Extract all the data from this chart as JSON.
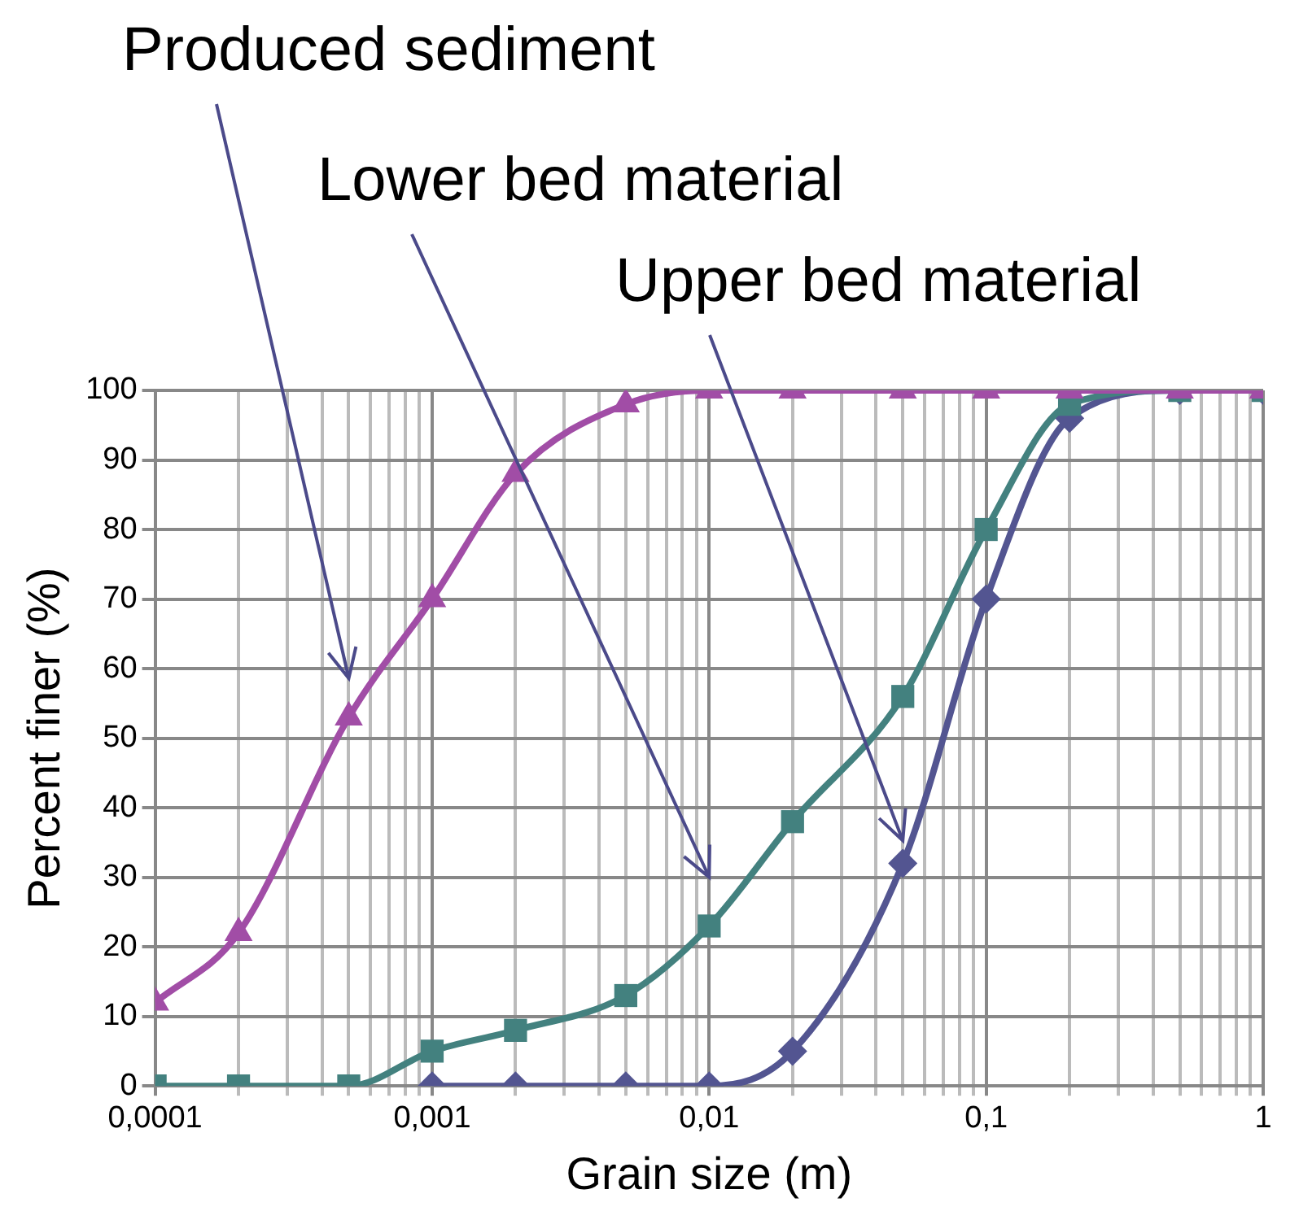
{
  "chart_data": {
    "type": "line",
    "xlabel": "Grain size (m)",
    "ylabel": "Percent finer (%)",
    "x": [
      0.0001,
      0.0002,
      0.0005,
      0.001,
      0.002,
      0.005,
      0.01,
      0.02,
      0.05,
      0.1,
      0.2,
      0.5,
      1
    ],
    "series": [
      {
        "name": "Produced sediment",
        "color": "#a14da6",
        "marker": "triangle",
        "values": [
          12,
          22,
          53,
          70,
          88,
          98,
          100,
          100,
          100,
          100,
          100,
          100,
          100
        ]
      },
      {
        "name": "Lower bed material",
        "color": "#43817f",
        "marker": "square",
        "values": [
          0,
          0,
          0,
          5,
          8,
          13,
          23,
          38,
          56,
          80,
          98,
          100,
          100
        ]
      },
      {
        "name": "Upper bed material",
        "color": "#535591",
        "marker": "diamond",
        "x": [
          0.001,
          0.002,
          0.005,
          0.01,
          0.02,
          0.05,
          0.1,
          0.2,
          0.5,
          1
        ],
        "values": [
          0,
          0,
          0,
          0,
          5,
          32,
          70,
          96,
          100,
          100
        ]
      }
    ],
    "log": "x",
    "xlim": [
      0.0001,
      1
    ],
    "xticks": [
      {
        "value": 0.0001,
        "label": "0,0001"
      },
      {
        "value": 0.0002,
        "label": null
      },
      {
        "value": 0.0003,
        "label": null
      },
      {
        "value": 0.0004,
        "label": null
      },
      {
        "value": 0.0005,
        "label": null
      },
      {
        "value": 0.0006,
        "label": null
      },
      {
        "value": 0.0007,
        "label": null
      },
      {
        "value": 0.0008,
        "label": null
      },
      {
        "value": 0.0009,
        "label": null
      },
      {
        "value": 0.001,
        "label": "0,001"
      },
      {
        "value": 0.002,
        "label": null
      },
      {
        "value": 0.003,
        "label": null
      },
      {
        "value": 0.004,
        "label": null
      },
      {
        "value": 0.005,
        "label": null
      },
      {
        "value": 0.006,
        "label": null
      },
      {
        "value": 0.007,
        "label": null
      },
      {
        "value": 0.008,
        "label": null
      },
      {
        "value": 0.009,
        "label": null
      },
      {
        "value": 0.01,
        "label": "0,01"
      },
      {
        "value": 0.02,
        "label": null
      },
      {
        "value": 0.03,
        "label": null
      },
      {
        "value": 0.04,
        "label": null
      },
      {
        "value": 0.05,
        "label": null
      },
      {
        "value": 0.06,
        "label": null
      },
      {
        "value": 0.07,
        "label": null
      },
      {
        "value": 0.08,
        "label": null
      },
      {
        "value": 0.09,
        "label": null
      },
      {
        "value": 0.1,
        "label": "0,1"
      },
      {
        "value": 0.2,
        "label": null
      },
      {
        "value": 0.3,
        "label": null
      },
      {
        "value": 0.4,
        "label": null
      },
      {
        "value": 0.5,
        "label": null
      },
      {
        "value": 0.6,
        "label": null
      },
      {
        "value": 0.7,
        "label": null
      },
      {
        "value": 0.8,
        "label": null
      },
      {
        "value": 0.9,
        "label": null
      },
      {
        "value": 1,
        "label": "1"
      }
    ],
    "ylim": [
      0,
      100
    ],
    "yticks": [
      0,
      10,
      20,
      30,
      40,
      50,
      60,
      70,
      80,
      90,
      100
    ],
    "grid": true,
    "legend": false
  }
}
